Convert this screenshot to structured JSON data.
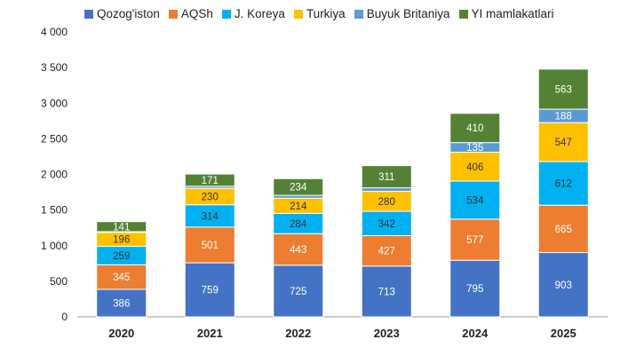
{
  "chart_data": {
    "type": "bar",
    "stacked": true,
    "categories": [
      "2020",
      "2021",
      "2022",
      "2023",
      "2024",
      "2025"
    ],
    "ylim": [
      0,
      4000
    ],
    "yticks": [
      0,
      500,
      1000,
      1500,
      2000,
      2500,
      3000,
      3500,
      4000
    ],
    "ytick_labels": [
      "0",
      "500",
      "1 000",
      "1 500",
      "2 000",
      "2 500",
      "3 000",
      "3 500",
      "4 000"
    ],
    "legend_position": "top",
    "series": [
      {
        "name": "Qozog'iston",
        "color": "#4472C4",
        "label_color": "#ffffff",
        "values": [
          386,
          759,
          725,
          713,
          795,
          903
        ],
        "labels": [
          "386",
          "759",
          "725",
          "713",
          "795",
          "903"
        ]
      },
      {
        "name": "AQSh",
        "color": "#ED7D31",
        "label_color": "#ffffff",
        "values": [
          345,
          501,
          443,
          427,
          577,
          665
        ],
        "labels": [
          "345",
          "501",
          "443",
          "427",
          "577",
          "665"
        ]
      },
      {
        "name": "J. Koreya",
        "color": "#00B0F0",
        "label_color": "#333333",
        "values": [
          259,
          314,
          284,
          342,
          534,
          612
        ],
        "labels": [
          "259",
          "314",
          "284",
          "342",
          "534",
          "612"
        ]
      },
      {
        "name": "Turkiya",
        "color": "#FFC000",
        "label_color": "#333333",
        "values": [
          196,
          230,
          214,
          280,
          406,
          547
        ],
        "labels": [
          "196",
          "230",
          "214",
          "280",
          "406",
          "547"
        ]
      },
      {
        "name": "Buyuk Britaniya",
        "color": "#5B9BD5",
        "label_color": "#ffffff",
        "values": [
          10,
          30,
          40,
          50,
          135,
          188
        ],
        "labels": [
          "",
          "",
          "",
          "",
          "135",
          "188"
        ]
      },
      {
        "name": "YI mamlakatlari",
        "color": "#548235",
        "label_color": "#ffffff",
        "values": [
          141,
          171,
          234,
          311,
          410,
          563
        ],
        "labels": [
          "141",
          "171",
          "234",
          "311",
          "410",
          "563"
        ]
      }
    ]
  }
}
